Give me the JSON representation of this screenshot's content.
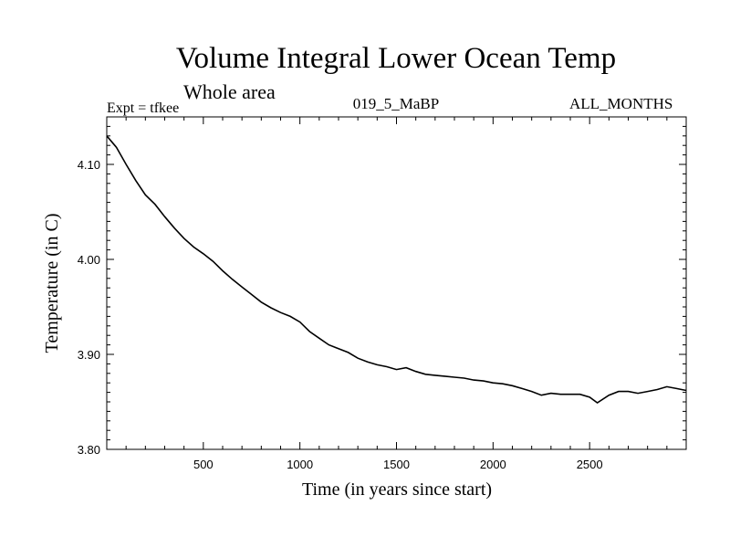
{
  "header": {
    "title": "Volume Integral Lower Ocean Temp",
    "subtitle": "Whole area",
    "expt": "Expt = tfkee",
    "run_id": "019_5_MaBP",
    "months": "ALL_MONTHS"
  },
  "chart_data": {
    "type": "line",
    "title": "Volume Integral Lower Ocean Temp",
    "subtitle": "Whole area",
    "xlabel": "Time (in years since start)",
    "ylabel": "Temperature (in C)",
    "xlim": [
      0,
      3000
    ],
    "ylim": [
      3.8,
      4.15
    ],
    "x_ticks": [
      500,
      1000,
      1500,
      2000,
      2500
    ],
    "x_tick_labels": [
      "500",
      "1000",
      "1500",
      "2000",
      "2500"
    ],
    "y_ticks": [
      3.8,
      3.9,
      4.0,
      4.1
    ],
    "y_tick_labels": [
      "3.80",
      "3.90",
      "4.00",
      "4.10"
    ],
    "grid": false,
    "color": "#000000",
    "series": [
      {
        "x": [
          0,
          50,
          100,
          150,
          200,
          250,
          300,
          350,
          400,
          450,
          500,
          550,
          600,
          650,
          700,
          750,
          800,
          850,
          900,
          950,
          1000,
          1050,
          1100,
          1150,
          1200,
          1250,
          1300,
          1350,
          1400,
          1450,
          1500,
          1550,
          1600,
          1650,
          1700,
          1750,
          1800,
          1850,
          1900,
          1950,
          2000,
          2050,
          2100,
          2150,
          2200,
          2250,
          2300,
          2350,
          2400,
          2450,
          2500,
          2540,
          2600,
          2650,
          2700,
          2750,
          2800,
          2850,
          2900,
          2950,
          3000
        ],
        "y": [
          4.13,
          4.118,
          4.1,
          4.083,
          4.068,
          4.058,
          4.045,
          4.033,
          4.022,
          4.013,
          4.006,
          3.998,
          3.988,
          3.979,
          3.971,
          3.963,
          3.955,
          3.949,
          3.944,
          3.94,
          3.934,
          3.924,
          3.917,
          3.91,
          3.906,
          3.902,
          3.896,
          3.892,
          3.889,
          3.887,
          3.884,
          3.886,
          3.882,
          3.879,
          3.878,
          3.877,
          3.876,
          3.875,
          3.873,
          3.872,
          3.87,
          3.869,
          3.867,
          3.864,
          3.861,
          3.857,
          3.859,
          3.858,
          3.858,
          3.858,
          3.855,
          3.849,
          3.857,
          3.861,
          3.861,
          3.859,
          3.861,
          3.863,
          3.866,
          3.864,
          3.862
        ]
      }
    ]
  }
}
